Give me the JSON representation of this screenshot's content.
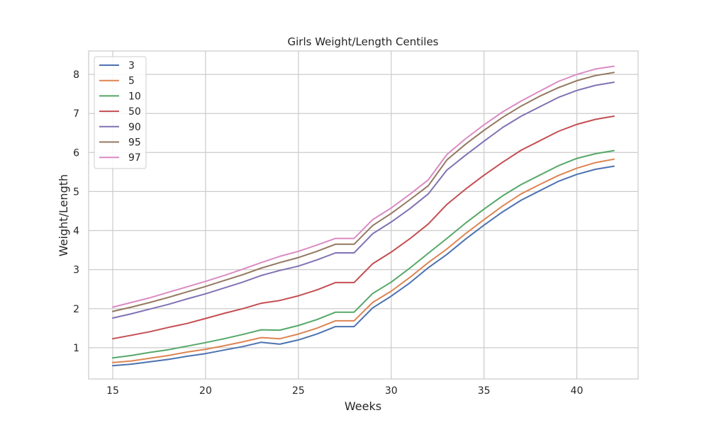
{
  "chart_data": {
    "type": "line",
    "title": "Girls Weight/Length Centiles",
    "xlabel": "Weeks",
    "ylabel": "Weight/Length",
    "xlim": [
      13.7,
      43.3
    ],
    "ylim": [
      0.2,
      8.6
    ],
    "x_ticks": [
      15,
      20,
      25,
      30,
      35,
      40
    ],
    "y_ticks": [
      1,
      2,
      3,
      4,
      5,
      6,
      7,
      8
    ],
    "grid": true,
    "legend_position": "upper-left",
    "x": [
      15,
      16,
      17,
      18,
      19,
      20,
      21,
      22,
      23,
      24,
      25,
      26,
      27,
      28,
      29,
      30,
      31,
      32,
      33,
      34,
      35,
      36,
      37,
      38,
      39,
      40,
      41,
      42
    ],
    "series": [
      {
        "name": "3",
        "color": "#4c72b0",
        "values": [
          0.54,
          0.58,
          0.64,
          0.7,
          0.78,
          0.85,
          0.94,
          1.03,
          1.14,
          1.09,
          1.2,
          1.35,
          1.54,
          1.54,
          2.02,
          2.32,
          2.66,
          3.05,
          3.39,
          3.78,
          4.14,
          4.48,
          4.78,
          5.02,
          5.26,
          5.44,
          5.57,
          5.65
        ]
      },
      {
        "name": "5",
        "color": "#dd8452",
        "values": [
          0.62,
          0.66,
          0.73,
          0.8,
          0.89,
          0.96,
          1.05,
          1.15,
          1.26,
          1.23,
          1.35,
          1.5,
          1.69,
          1.69,
          2.16,
          2.45,
          2.8,
          3.18,
          3.53,
          3.92,
          4.28,
          4.63,
          4.94,
          5.18,
          5.41,
          5.6,
          5.74,
          5.83
        ]
      },
      {
        "name": "10",
        "color": "#55a868",
        "values": [
          0.74,
          0.8,
          0.88,
          0.95,
          1.04,
          1.13,
          1.23,
          1.34,
          1.46,
          1.45,
          1.57,
          1.72,
          1.91,
          1.91,
          2.39,
          2.68,
          3.04,
          3.42,
          3.8,
          4.19,
          4.55,
          4.89,
          5.18,
          5.42,
          5.66,
          5.85,
          5.97,
          6.05
        ]
      },
      {
        "name": "50",
        "color": "#c44e52",
        "values": [
          1.23,
          1.32,
          1.41,
          1.52,
          1.62,
          1.75,
          1.88,
          2.0,
          2.14,
          2.21,
          2.33,
          2.48,
          2.67,
          2.67,
          3.15,
          3.45,
          3.79,
          4.17,
          4.67,
          5.06,
          5.42,
          5.75,
          6.06,
          6.3,
          6.54,
          6.72,
          6.85,
          6.93
        ]
      },
      {
        "name": "90",
        "color": "#8172b3",
        "values": [
          1.76,
          1.87,
          1.99,
          2.11,
          2.25,
          2.38,
          2.53,
          2.68,
          2.85,
          2.98,
          3.09,
          3.25,
          3.43,
          3.43,
          3.92,
          4.22,
          4.56,
          4.94,
          5.55,
          5.93,
          6.29,
          6.64,
          6.93,
          7.17,
          7.41,
          7.59,
          7.72,
          7.8
        ]
      },
      {
        "name": "95",
        "color": "#937860",
        "values": [
          1.93,
          2.04,
          2.16,
          2.29,
          2.43,
          2.57,
          2.72,
          2.87,
          3.04,
          3.18,
          3.31,
          3.47,
          3.65,
          3.65,
          4.13,
          4.44,
          4.79,
          5.15,
          5.81,
          6.21,
          6.57,
          6.9,
          7.19,
          7.44,
          7.66,
          7.84,
          7.97,
          8.05
        ]
      },
      {
        "name": "97",
        "color": "#da8bc3",
        "values": [
          2.04,
          2.16,
          2.28,
          2.42,
          2.56,
          2.7,
          2.85,
          3.01,
          3.18,
          3.34,
          3.47,
          3.63,
          3.8,
          3.8,
          4.28,
          4.58,
          4.93,
          5.3,
          5.95,
          6.35,
          6.71,
          7.04,
          7.32,
          7.57,
          7.82,
          8.0,
          8.14,
          8.21
        ]
      }
    ]
  },
  "colors": {
    "grid": "#cccccc",
    "axes_edge": "#cccccc",
    "background": "#ffffff"
  }
}
